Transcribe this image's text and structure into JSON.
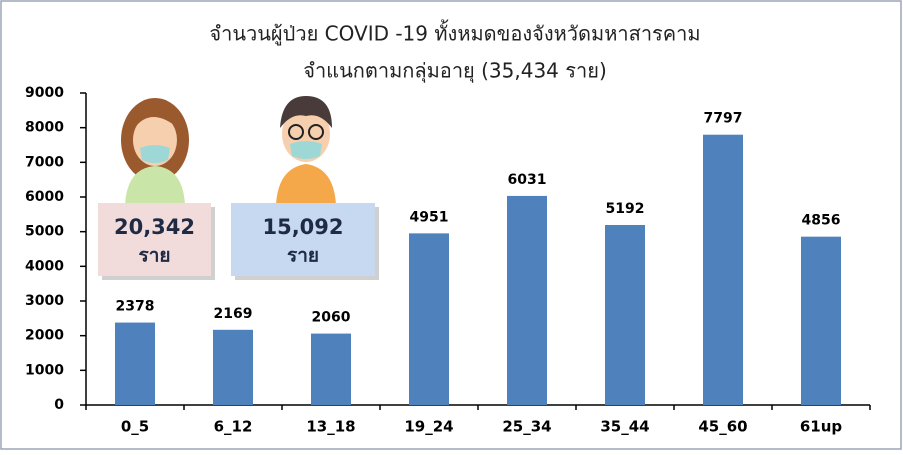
{
  "chart_data": {
    "type": "bar",
    "title": "จำนวนผู้ป่วย COVID -19 ทั้งหมดของจังหวัดมหาสารคาม",
    "subtitle": "จำแนกตามกลุ่มอายุ (35,434 ราย)",
    "categories": [
      "0_5",
      "6_12",
      "13_18",
      "19_24",
      "25_34",
      "35_44",
      "45_60",
      "61up"
    ],
    "values": [
      2378,
      2169,
      2060,
      4951,
      6031,
      5192,
      7797,
      4856
    ],
    "color": "#4f81bd",
    "ylim": [
      0,
      9000
    ],
    "yticks": [
      0,
      1000,
      2000,
      3000,
      4000,
      5000,
      6000,
      7000,
      8000,
      9000
    ],
    "annotations": [
      {
        "text": "20,342",
        "unit": "ราย",
        "color": "#f2dcdb"
      },
      {
        "text": "15,092",
        "unit": "ราย",
        "color": "#c6d9f1"
      }
    ]
  }
}
